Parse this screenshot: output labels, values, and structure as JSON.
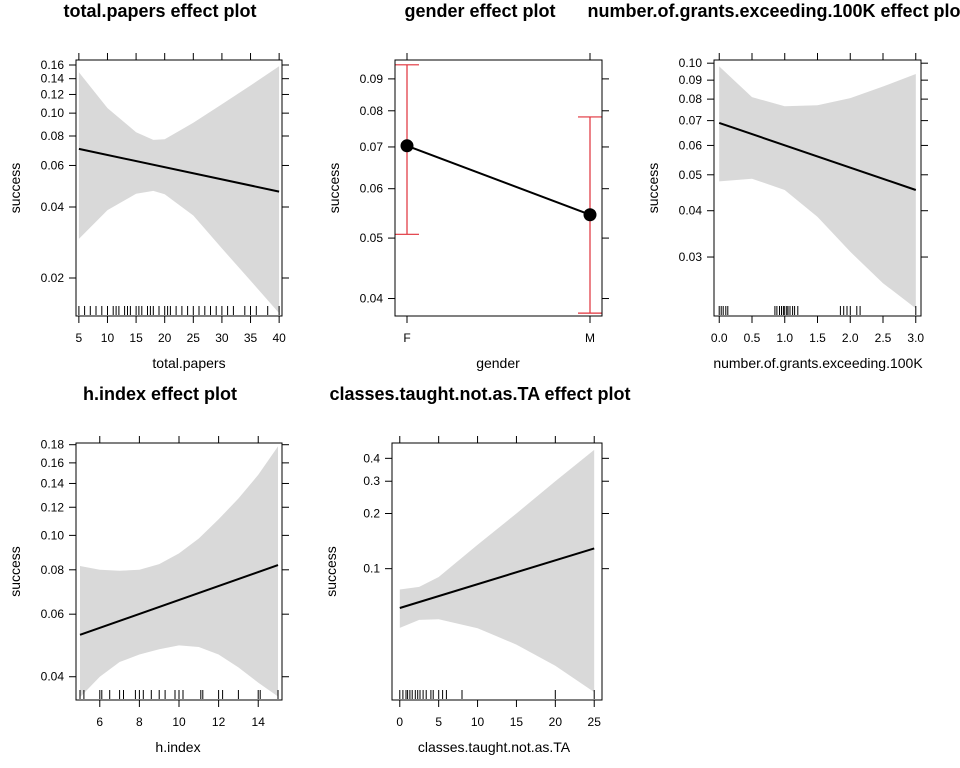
{
  "chart_data": [
    {
      "type": "line",
      "title": "total.papers effect plot",
      "xlabel": "total.papers",
      "ylabel": "success",
      "xlim": [
        4.5,
        40.5
      ],
      "ylim": [
        0.0138,
        0.168
      ],
      "yscale": "log",
      "xticks": [
        5,
        10,
        15,
        20,
        25,
        30,
        35,
        40
      ],
      "xtick_labels": [
        "5",
        "10",
        "15",
        "20",
        "25",
        "30",
        "35",
        "40"
      ],
      "yticks": [
        0.02,
        0.04,
        0.06,
        0.08,
        0.1,
        0.12,
        0.14,
        0.16
      ],
      "ytick_labels": [
        "0.02",
        "0.04",
        "0.06",
        "0.08",
        "0.10",
        "0.12",
        "0.14",
        "0.16"
      ],
      "series": [
        {
          "x": [
            5,
            40
          ],
          "y": [
            0.0705,
            0.0465
          ]
        }
      ],
      "band": {
        "x": [
          5,
          10,
          15,
          18,
          20,
          25,
          30,
          35,
          40
        ],
        "upper": [
          0.149,
          0.105,
          0.083,
          0.077,
          0.0775,
          0.091,
          0.109,
          0.131,
          0.158
        ],
        "lower": [
          0.0293,
          0.0388,
          0.0455,
          0.0468,
          0.0453,
          0.0368,
          0.0267,
          0.0195,
          0.0142
        ]
      },
      "rug": [
        5,
        6,
        7,
        8,
        9,
        10,
        11,
        11.5,
        12,
        13,
        13.5,
        14,
        15,
        15.5,
        16,
        17,
        17.5,
        18,
        19,
        20,
        20.5,
        21,
        22,
        23,
        24,
        25,
        26,
        27,
        28,
        29,
        30,
        31,
        32,
        34,
        35,
        36,
        38,
        40
      ]
    },
    {
      "type": "line",
      "title": "gender effect plot",
      "xlabel": "gender",
      "ylabel": "success",
      "categories": [
        "F",
        "M"
      ],
      "ylim": [
        0.0375,
        0.0965
      ],
      "yscale": "log",
      "yticks": [
        0.04,
        0.05,
        0.06,
        0.07,
        0.08,
        0.09
      ],
      "ytick_labels": [
        "0.04",
        "0.05",
        "0.06",
        "0.07",
        "0.08",
        "0.09"
      ],
      "series": [
        {
          "values": [
            0.0703,
            0.0545
          ]
        }
      ],
      "error_bars": {
        "upper": [
          0.0948,
          0.0782
        ],
        "lower": [
          0.0507,
          0.0379
        ]
      }
    },
    {
      "type": "line",
      "title": "number.of.grants.exceeding.100K effect plot",
      "xlabel": "number.of.grants.exceeding.100K",
      "ylabel": "success",
      "xlim": [
        -0.08,
        3.08
      ],
      "ylim": [
        0.0208,
        0.102
      ],
      "yscale": "log",
      "xticks": [
        0.0,
        0.5,
        1.0,
        1.5,
        2.0,
        2.5,
        3.0
      ],
      "xtick_labels": [
        "0.0",
        "0.5",
        "1.0",
        "1.5",
        "2.0",
        "2.5",
        "3.0"
      ],
      "yticks": [
        0.03,
        0.04,
        0.05,
        0.06,
        0.07,
        0.08,
        0.09,
        0.1
      ],
      "ytick_labels": [
        "0.03",
        "0.04",
        "0.05",
        "0.06",
        "0.07",
        "0.08",
        "0.09",
        "0.10"
      ],
      "series": [
        {
          "x": [
            0,
            3
          ],
          "y": [
            0.069,
            0.0455
          ]
        }
      ],
      "band": {
        "x": [
          0,
          0.5,
          1.0,
          1.5,
          2.0,
          2.5,
          3.0
        ],
        "upper": [
          0.098,
          0.081,
          0.0765,
          0.077,
          0.0805,
          0.0865,
          0.0935
        ],
        "lower": [
          0.048,
          0.0488,
          0.0455,
          0.0385,
          0.031,
          0.0255,
          0.0218
        ]
      },
      "rug": [
        0.0,
        0.03,
        0.06,
        0.1,
        0.13,
        0.85,
        0.88,
        0.92,
        0.95,
        0.98,
        1.0,
        1.03,
        1.05,
        1.08,
        1.12,
        1.15,
        1.2,
        1.85,
        1.9,
        1.95,
        2.0,
        2.1,
        2.15,
        3.0
      ]
    },
    {
      "type": "line",
      "title": "h.index effect plot",
      "xlabel": "h.index",
      "ylabel": "success",
      "xlim": [
        4.8,
        15.2
      ],
      "ylim": [
        0.0344,
        0.182
      ],
      "yscale": "log",
      "xticks": [
        6,
        8,
        10,
        12,
        14
      ],
      "xtick_labels": [
        "6",
        "8",
        "10",
        "12",
        "14"
      ],
      "yticks": [
        0.04,
        0.06,
        0.08,
        0.1,
        0.12,
        0.14,
        0.16,
        0.18
      ],
      "ytick_labels": [
        "0.04",
        "0.06",
        "0.08",
        "0.10",
        "0.12",
        "0.14",
        "0.16",
        "0.18"
      ],
      "series": [
        {
          "x": [
            5,
            15
          ],
          "y": [
            0.0525,
            0.0825
          ]
        }
      ],
      "band": {
        "x": [
          5,
          6,
          7,
          8,
          9,
          10,
          11,
          12,
          13,
          14,
          15
        ],
        "upper": [
          0.082,
          0.08,
          0.0795,
          0.08,
          0.083,
          0.089,
          0.098,
          0.111,
          0.127,
          0.148,
          0.178
        ],
        "lower": [
          0.035,
          0.04,
          0.044,
          0.0462,
          0.0478,
          0.049,
          0.0485,
          0.0462,
          0.0425,
          0.0385,
          0.0352
        ]
      },
      "rug": [
        5,
        5.2,
        6,
        6.1,
        6.5,
        7,
        7.2,
        7.8,
        8,
        8.2,
        8.6,
        9,
        9.3,
        9.8,
        10,
        10.2,
        11.1,
        11.2,
        12,
        12.2,
        13,
        14,
        14.1,
        15
      ]
    },
    {
      "type": "line",
      "title": "classes.taught.not.as.TA effect plot",
      "xlabel": "classes.taught.not.as.TA",
      "ylabel": "success",
      "xlim": [
        -1,
        26
      ],
      "ylim": [
        0.0192,
        0.485
      ],
      "yscale": "log",
      "xticks": [
        0,
        5,
        10,
        15,
        20,
        25
      ],
      "xtick_labels": [
        "0",
        "5",
        "10",
        "15",
        "20",
        "25"
      ],
      "yticks": [
        0.1,
        0.2,
        0.3,
        0.4
      ],
      "ytick_labels": [
        "0.1",
        "0.2",
        "0.3",
        "0.4"
      ],
      "series": [
        {
          "x": [
            0,
            25
          ],
          "y": [
            0.061,
            0.129
          ]
        }
      ],
      "band": {
        "x": [
          0,
          2.5,
          5,
          10,
          15,
          20,
          25
        ],
        "upper": [
          0.077,
          0.0795,
          0.09,
          0.135,
          0.2,
          0.3,
          0.445
        ],
        "lower": [
          0.0475,
          0.0525,
          0.053,
          0.0473,
          0.0385,
          0.0295,
          0.0212
        ]
      },
      "rug": [
        0,
        0.4,
        0.8,
        1,
        1.3,
        1.6,
        2,
        2.3,
        2.6,
        3,
        3.4,
        4,
        4.3,
        5,
        5.5,
        6,
        8,
        20,
        25
      ]
    }
  ]
}
